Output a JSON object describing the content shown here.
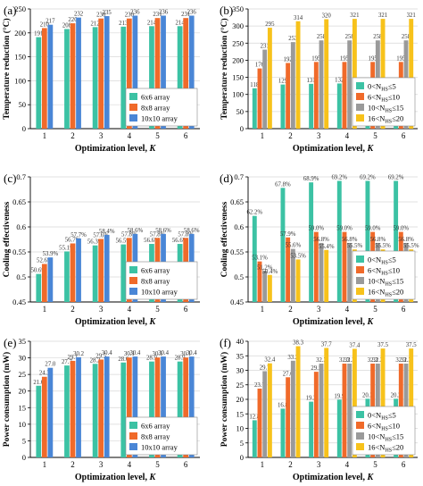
{
  "colors": {
    "teal": "#3cc2a4",
    "orange": "#f06a2a",
    "blue": "#4a86d6",
    "gray": "#9a9a9a",
    "yellow": "#f7c21b",
    "grid": "#d8d8d8",
    "axis": "#000000"
  },
  "chart_data": [
    {
      "panel": "(a)",
      "type": "bar",
      "ylabel": "Temperature reduction (°C)",
      "xlabel_text": "Optimization level, ",
      "xlabel_var": "K",
      "categories": [
        "1",
        "2",
        "3",
        "4",
        "5",
        "6"
      ],
      "ylim": [
        0,
        250
      ],
      "yticks": [
        0,
        50,
        100,
        150,
        200,
        250
      ],
      "grid": true,
      "legend_position": "bottom-right",
      "series": [
        {
          "name": "6x6 array",
          "name_sub": "",
          "name_tail": "",
          "color_key": "teal",
          "values": [
            191,
            208,
            212,
            213,
            214,
            214
          ]
        },
        {
          "name": "8x8 array",
          "name_sub": "",
          "name_tail": "",
          "color_key": "orange",
          "values": [
            210,
            220,
            230,
            230,
            231,
            231
          ]
        },
        {
          "name": "10x10 array",
          "name_sub": "",
          "name_tail": "",
          "color_key": "blue",
          "values": [
            217,
            232,
            235,
            236,
            236,
            236
          ]
        }
      ],
      "labels": [
        [
          "191",
          "210",
          "217"
        ],
        [
          "208",
          "220",
          "232"
        ],
        [
          "212",
          "230",
          "235"
        ],
        [
          "213",
          "230",
          "236"
        ],
        [
          "214",
          "231",
          "236"
        ],
        [
          "214",
          "231",
          "236"
        ]
      ]
    },
    {
      "panel": "(b)",
      "type": "bar",
      "ylabel": "Temperature reduction (°C)",
      "xlabel_text": "Optimization level, ",
      "xlabel_var": "K",
      "categories": [
        "1",
        "2",
        "3",
        "4",
        "5",
        "6"
      ],
      "ylim": [
        0,
        350
      ],
      "yticks": [
        0,
        50,
        100,
        150,
        200,
        250,
        300,
        350
      ],
      "grid": true,
      "legend_position": "bottom-right",
      "series": [
        {
          "name": "0<N",
          "name_sub": "HS",
          "name_tail": "≤5",
          "color_key": "teal",
          "values": [
            118,
            129,
            131,
            132,
            131,
            131
          ]
        },
        {
          "name": "6<N",
          "name_sub": "HS",
          "name_tail": "≤10",
          "color_key": "orange",
          "values": [
            176,
            192,
            195,
            195,
            195,
            195
          ]
        },
        {
          "name": "10<N",
          "name_sub": "HS",
          "name_tail": "≤15",
          "color_key": "gray",
          "values": [
            231,
            253,
            258,
            258,
            258,
            258
          ]
        },
        {
          "name": "16<N",
          "name_sub": "HS",
          "name_tail": "≤20",
          "color_key": "yellow",
          "values": [
            295,
            314,
            320,
            321,
            321,
            321
          ]
        }
      ],
      "labels": [
        [
          "118",
          "176",
          "231",
          "295"
        ],
        [
          "129",
          "192",
          "253",
          "314"
        ],
        [
          "131",
          "195",
          "258",
          "320"
        ],
        [
          "132",
          "195",
          "258",
          "321"
        ],
        [
          "131",
          "195",
          "258",
          "321"
        ],
        [
          "131",
          "195",
          "258",
          "321"
        ]
      ]
    },
    {
      "panel": "(c)",
      "type": "bar",
      "ylabel": "Cooling effectiveness",
      "xlabel_text": "Optimization level, ",
      "xlabel_var": "K",
      "categories": [
        "1",
        "2",
        "3",
        "4",
        "5",
        "6"
      ],
      "ylim": [
        0.45,
        0.7
      ],
      "yticks": [
        0.45,
        0.5,
        0.55,
        0.6,
        0.65,
        0.7
      ],
      "grid": true,
      "legend_position": "bottom-right",
      "series": [
        {
          "name": "6x6 array",
          "name_sub": "",
          "name_tail": "",
          "color_key": "teal",
          "values": [
            0.506,
            0.551,
            0.563,
            0.565,
            0.566,
            0.566
          ]
        },
        {
          "name": "8x8 array",
          "name_sub": "",
          "name_tail": "",
          "color_key": "orange",
          "values": [
            0.526,
            0.567,
            0.576,
            0.578,
            0.578,
            0.578
          ]
        },
        {
          "name": "10x10 array",
          "name_sub": "",
          "name_tail": "",
          "color_key": "blue",
          "values": [
            0.539,
            0.577,
            0.584,
            0.586,
            0.586,
            0.586
          ]
        }
      ],
      "labels": [
        [
          "50.6%",
          "52.6%",
          "53.9%"
        ],
        [
          "55.1%",
          "56.7%",
          "57.7%"
        ],
        [
          "56.3%",
          "57.6%",
          "58.4%"
        ],
        [
          "56.5%",
          "57.8%",
          "58.6%"
        ],
        [
          "56.6%",
          "57.8%",
          "58.6%"
        ],
        [
          "56.6%",
          "57.8%",
          "58.6%"
        ]
      ]
    },
    {
      "panel": "(d)",
      "type": "bar",
      "ylabel": "Cooling effectiveness",
      "xlabel_text": "Optimization level, ",
      "xlabel_var": "K",
      "categories": [
        "1",
        "2",
        "3",
        "4",
        "5",
        "6"
      ],
      "ylim": [
        0.45,
        0.7
      ],
      "yticks": [
        0.45,
        0.5,
        0.55,
        0.6,
        0.65,
        0.7
      ],
      "grid": true,
      "legend_position": "bottom-right",
      "series": [
        {
          "name": "0<N",
          "name_sub": "HS",
          "name_tail": "≤5",
          "color_key": "teal",
          "values": [
            0.622,
            0.678,
            0.689,
            0.692,
            0.692,
            0.692
          ]
        },
        {
          "name": "6<N",
          "name_sub": "HS",
          "name_tail": "≤10",
          "color_key": "orange",
          "values": [
            0.531,
            0.579,
            0.59,
            0.59,
            0.59,
            0.59
          ]
        },
        {
          "name": "10<N",
          "name_sub": "HS",
          "name_tail": "≤15",
          "color_key": "gray",
          "values": [
            0.512,
            0.556,
            0.568,
            0.568,
            0.568,
            0.568
          ]
        },
        {
          "name": "16<N",
          "name_sub": "HS",
          "name_tail": "≤20",
          "color_key": "yellow",
          "values": [
            0.504,
            0.535,
            0.554,
            0.555,
            0.555,
            0.555
          ]
        }
      ],
      "labels": [
        [
          "62.2%",
          "53.1%",
          "51.2%",
          "50.4%"
        ],
        [
          "67.8%",
          "57.9%",
          "55.6%",
          "53.5%"
        ],
        [
          "68.9%",
          "59.0%",
          "56.8%",
          "55.4%"
        ],
        [
          "69.2%",
          "59.0%",
          "56.8%",
          "55.5%"
        ],
        [
          "69.2%",
          "59.0%",
          "56.8%",
          "55.5%"
        ],
        [
          "69.2%",
          "59.0%",
          "56.8%",
          "55.5%"
        ]
      ]
    },
    {
      "panel": "(e)",
      "type": "bar",
      "ylabel": "Power consumption (mW)",
      "xlabel_text": "Optimization level, ",
      "xlabel_var": "K",
      "categories": [
        "1",
        "2",
        "3",
        "4",
        "5",
        "6"
      ],
      "ylim": [
        0,
        35
      ],
      "yticks": [
        0,
        5,
        10,
        15,
        20,
        25,
        30,
        35
      ],
      "grid": true,
      "legend_position": "bottom-right",
      "series": [
        {
          "name": "6x6 array",
          "name_sub": "",
          "name_tail": "",
          "color_key": "teal",
          "values": [
            21.6,
            27.7,
            28.2,
            28.6,
            28.9,
            28.9
          ]
        },
        {
          "name": "8x8 array",
          "name_sub": "",
          "name_tail": "",
          "color_key": "orange",
          "values": [
            24.3,
            29.1,
            29.5,
            30.1,
            30.1,
            30.1
          ]
        },
        {
          "name": "10x10 array",
          "name_sub": "",
          "name_tail": "",
          "color_key": "blue",
          "values": [
            27.0,
            30.2,
            30.4,
            30.4,
            30.4,
            30.4
          ]
        }
      ],
      "labels": [
        [
          "21.6",
          "24.3",
          "27.0"
        ],
        [
          "27.7",
          "29.1",
          "30.2"
        ],
        [
          "28.2",
          "29.5",
          "30.4"
        ],
        [
          "28.6",
          "30.1",
          "30.4"
        ],
        [
          "28.9",
          "30.1",
          "30.4"
        ],
        [
          "28.9",
          "30.1",
          "30.4"
        ]
      ]
    },
    {
      "panel": "(f)",
      "type": "bar",
      "ylabel": "Power consumption (mW)",
      "xlabel_text": "Optimization level, ",
      "xlabel_var": "K",
      "categories": [
        "1",
        "2",
        "3",
        "4",
        "5",
        "6"
      ],
      "ylim": [
        0,
        40
      ],
      "yticks": [
        0,
        5,
        10,
        15,
        20,
        25,
        30,
        35,
        40
      ],
      "grid": true,
      "legend_position": "bottom-right",
      "series": [
        {
          "name": "0<N",
          "name_sub": "HS",
          "name_tail": "≤5",
          "color_key": "teal",
          "values": [
            12.8,
            16.8,
            19.2,
            19.9,
            20.2,
            20.2
          ]
        },
        {
          "name": "6<N",
          "name_sub": "HS",
          "name_tail": "≤10",
          "color_key": "orange",
          "values": [
            23.7,
            27.6,
            29.5,
            32.3,
            32.3,
            32.3
          ]
        },
        {
          "name": "10<N",
          "name_sub": "HS",
          "name_tail": "≤15",
          "color_key": "gray",
          "values": [
            29.7,
            33.3,
            32.3,
            32.3,
            32.3,
            32.3
          ]
        },
        {
          "name": "16<N",
          "name_sub": "HS",
          "name_tail": "≤20",
          "color_key": "yellow",
          "values": [
            32.4,
            38.3,
            37.7,
            37.4,
            37.5,
            37.5
          ]
        }
      ],
      "labels": [
        [
          "12.8",
          "23.7",
          "29.7",
          "32.4"
        ],
        [
          "16.8",
          "27.6",
          "33.3",
          "38.3"
        ],
        [
          "19.2",
          "29.5",
          "32.3",
          "37.7"
        ],
        [
          "19.9",
          "32.3",
          "32.3",
          "37.4"
        ],
        [
          "20.2",
          "32.3",
          "32.3",
          "37.5"
        ],
        [
          "20.2",
          "32.3",
          "32.3",
          "37.5"
        ]
      ]
    }
  ]
}
